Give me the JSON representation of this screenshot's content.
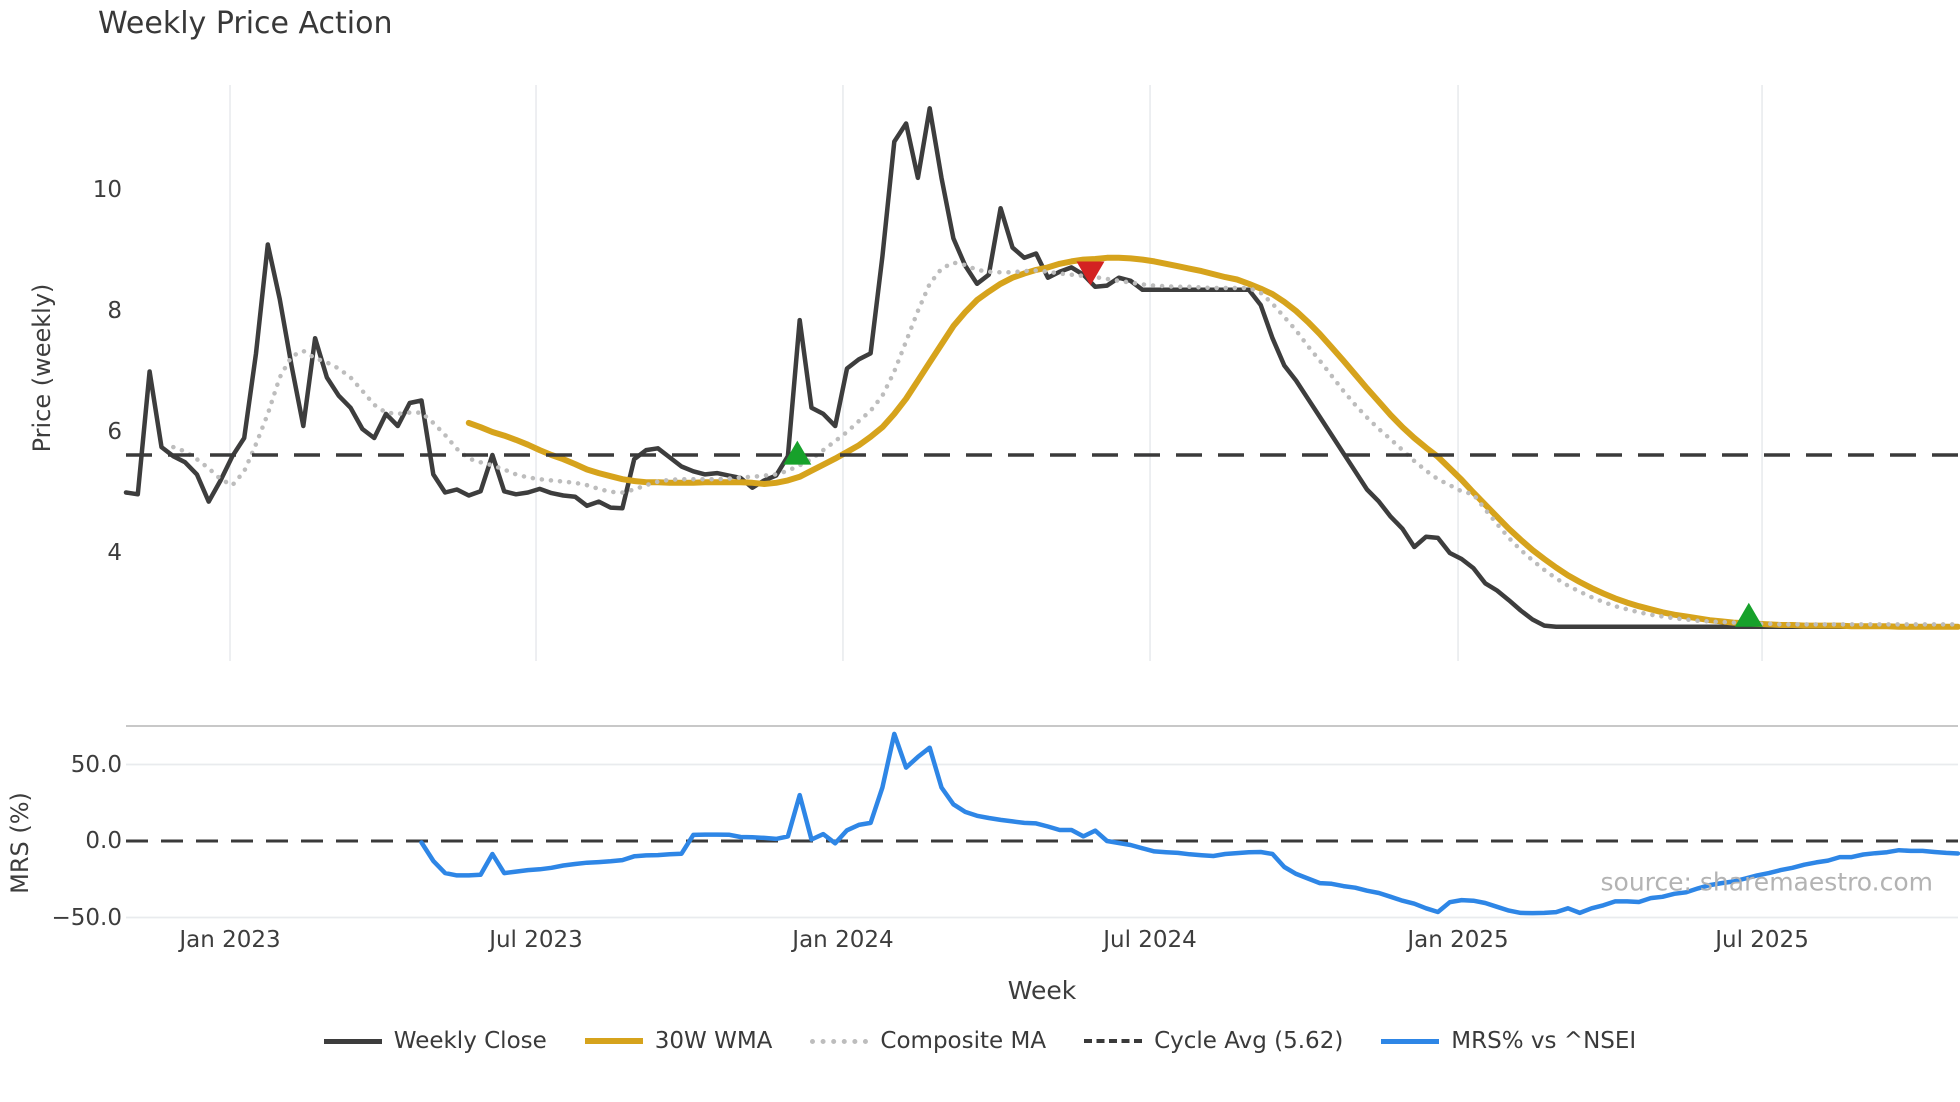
{
  "title": "Weekly Price Action",
  "price_axis_label": "Price (weekly)",
  "mrs_axis_label": "MRS (%)",
  "x_axis_label": "Week",
  "source_text": "source: sharemaestro.com",
  "colors": {
    "background": "#ffffff",
    "text": "#3d3d3d",
    "grid": "#e9ebee",
    "panel_spine": "#c8c8c8",
    "weekly_close": "#3d3d3d",
    "wma_30w": "#d6a31c",
    "composite_ma": "#bdbdbd",
    "cycle_avg": "#3a3a3a",
    "mrs_line": "#2e86e6",
    "buy_marker": "#17a12b",
    "sell_marker": "#d32222",
    "source": "#b3b3b3"
  },
  "chart_data": {
    "type": "line",
    "x_unit": "week_index",
    "weeks_total": 155,
    "x_ticks": [
      {
        "label": "Jan 2023",
        "week": 8.8
      },
      {
        "label": "Jul 2023",
        "week": 34.69
      },
      {
        "label": "Jan 2024",
        "week": 60.66
      },
      {
        "label": "Jul 2024",
        "week": 86.64
      },
      {
        "label": "Jan 2025",
        "week": 112.7
      },
      {
        "label": "Jul 2025",
        "week": 138.42
      }
    ],
    "price_axis": {
      "ticks": [
        {
          "v": 4,
          "label": "4"
        },
        {
          "v": 6,
          "label": "6"
        },
        {
          "v": 8,
          "label": "8"
        },
        {
          "v": 10,
          "label": "10"
        }
      ],
      "range": [
        2.3,
        11.75
      ]
    },
    "mrs_axis": {
      "ticks": [
        {
          "v": -50,
          "label": "−50.0"
        },
        {
          "v": 0,
          "label": "0.0"
        },
        {
          "v": 50,
          "label": "50.0"
        }
      ],
      "range": [
        -55,
        75
      ],
      "zero_line_dashed": true
    },
    "series": [
      {
        "id": "weekly_close",
        "name": "Weekly Close",
        "panel": "price",
        "style": "solid",
        "color": "#3d3d3d",
        "start_week": 0,
        "values": [
          5.0,
          4.97,
          7.0,
          5.75,
          5.6,
          5.5,
          5.3,
          4.85,
          5.2,
          5.6,
          5.9,
          7.3,
          9.1,
          8.2,
          7.1,
          6.1,
          7.55,
          6.9,
          6.6,
          6.4,
          6.05,
          5.9,
          6.3,
          6.1,
          6.48,
          6.52,
          5.3,
          5.0,
          5.05,
          4.95,
          5.02,
          5.62,
          5.02,
          4.97,
          5.0,
          5.06,
          4.99,
          4.95,
          4.93,
          4.78,
          4.85,
          4.75,
          4.74,
          5.55,
          5.7,
          5.73,
          5.58,
          5.43,
          5.35,
          5.3,
          5.32,
          5.28,
          5.24,
          5.08,
          5.2,
          5.28,
          5.6,
          7.85,
          6.4,
          6.3,
          6.1,
          7.05,
          7.2,
          7.3,
          8.9,
          10.8,
          11.1,
          10.2,
          11.35,
          10.2,
          9.2,
          8.75,
          8.45,
          8.6,
          9.7,
          9.05,
          8.88,
          8.95,
          8.55,
          8.65,
          8.72,
          8.6,
          8.4,
          8.42,
          8.55,
          8.5,
          8.35,
          8.35,
          8.35,
          8.35,
          8.35,
          8.35,
          8.35,
          8.35,
          8.35,
          8.35,
          8.1,
          7.55,
          7.1,
          6.85,
          6.55,
          6.25,
          5.95,
          5.65,
          5.35,
          5.05,
          4.85,
          4.6,
          4.4,
          4.1,
          4.27,
          4.25,
          4.0,
          3.9,
          3.75,
          3.5,
          3.38,
          3.22,
          3.05,
          2.9,
          2.8,
          2.78,
          2.78,
          2.78,
          2.78,
          2.78,
          2.78,
          2.78,
          2.78,
          2.78,
          2.78,
          2.78,
          2.78,
          2.78,
          2.78,
          2.78,
          2.78,
          2.78,
          2.78,
          2.78,
          2.78,
          2.78,
          2.78,
          2.78,
          2.78,
          2.78,
          2.78,
          2.78,
          2.78,
          2.78,
          2.78,
          2.78,
          2.78,
          2.78,
          2.78,
          2.78
        ]
      },
      {
        "id": "wma_30w",
        "name": "30W WMA",
        "panel": "price",
        "style": "solid",
        "color": "#d6a31c",
        "start_week": 29,
        "values": [
          6.15,
          6.08,
          6.0,
          5.94,
          5.87,
          5.79,
          5.7,
          5.62,
          5.55,
          5.47,
          5.38,
          5.32,
          5.27,
          5.22,
          5.19,
          5.17,
          5.17,
          5.16,
          5.16,
          5.16,
          5.17,
          5.17,
          5.17,
          5.17,
          5.16,
          5.14,
          5.16,
          5.2,
          5.26,
          5.36,
          5.46,
          5.56,
          5.67,
          5.78,
          5.92,
          6.08,
          6.3,
          6.55,
          6.85,
          7.15,
          7.45,
          7.75,
          7.98,
          8.18,
          8.32,
          8.45,
          8.55,
          8.62,
          8.68,
          8.72,
          8.78,
          8.82,
          8.85,
          8.86,
          8.88,
          8.88,
          8.87,
          8.85,
          8.82,
          8.78,
          8.74,
          8.7,
          8.66,
          8.61,
          8.56,
          8.52,
          8.45,
          8.37,
          8.28,
          8.15,
          8.0,
          7.82,
          7.62,
          7.4,
          7.18,
          6.95,
          6.72,
          6.5,
          6.28,
          6.08,
          5.9,
          5.74,
          5.59,
          5.4,
          5.21,
          5.0,
          4.8,
          4.6,
          4.4,
          4.22,
          4.05,
          3.9,
          3.76,
          3.63,
          3.52,
          3.42,
          3.33,
          3.25,
          3.18,
          3.12,
          3.07,
          3.02,
          2.98,
          2.95,
          2.92,
          2.89,
          2.87,
          2.85,
          2.84,
          2.83,
          2.82,
          2.81,
          2.81,
          2.8,
          2.8,
          2.8,
          2.8,
          2.79,
          2.79,
          2.79,
          2.79,
          2.78,
          2.78,
          2.78,
          2.78,
          2.78,
          2.78
        ]
      },
      {
        "id": "composite_ma",
        "name": "Composite MA",
        "panel": "price",
        "style": "dotted",
        "color": "#bdbdbd",
        "start_week": 4,
        "values": [
          5.75,
          5.68,
          5.55,
          5.4,
          5.22,
          5.12,
          5.35,
          5.8,
          6.3,
          6.9,
          7.25,
          7.34,
          7.22,
          7.15,
          7.05,
          6.9,
          6.68,
          6.45,
          6.32,
          6.3,
          6.32,
          6.32,
          6.15,
          5.95,
          5.72,
          5.56,
          5.5,
          5.45,
          5.38,
          5.3,
          5.25,
          5.22,
          5.2,
          5.18,
          5.16,
          5.12,
          5.06,
          5.01,
          5.0,
          5.05,
          5.12,
          5.18,
          5.21,
          5.22,
          5.22,
          5.22,
          5.22,
          5.23,
          5.25,
          5.26,
          5.28,
          5.3,
          5.36,
          5.45,
          5.55,
          5.7,
          5.85,
          6.0,
          6.18,
          6.35,
          6.6,
          7.0,
          7.5,
          8.0,
          8.45,
          8.7,
          8.8,
          8.76,
          8.68,
          8.65,
          8.64,
          8.64,
          8.66,
          8.67,
          8.65,
          8.62,
          8.6,
          8.58,
          8.56,
          8.53,
          8.5,
          8.47,
          8.44,
          8.42,
          8.41,
          8.4,
          8.4,
          8.39,
          8.38,
          8.38,
          8.38,
          8.38,
          8.3,
          8.12,
          7.9,
          7.68,
          7.42,
          7.18,
          6.93,
          6.68,
          6.45,
          6.24,
          6.05,
          5.88,
          5.7,
          5.52,
          5.36,
          5.22,
          5.12,
          5.02,
          4.97,
          4.72,
          4.48,
          4.25,
          4.05,
          3.88,
          3.72,
          3.58,
          3.46,
          3.36,
          3.27,
          3.19,
          3.12,
          3.07,
          3.02,
          2.98,
          2.95,
          2.92,
          2.9,
          2.88,
          2.87,
          2.86,
          2.85,
          2.84,
          2.83,
          2.83,
          2.82,
          2.82,
          2.82,
          2.82,
          2.82,
          2.82,
          2.82,
          2.82,
          2.82,
          2.82,
          2.82,
          2.82,
          2.82,
          2.82,
          2.82,
          2.82
        ]
      },
      {
        "id": "cycle_avg",
        "name": "Cycle Avg (5.62)",
        "panel": "price",
        "style": "dashed",
        "color": "#3a3a3a",
        "constant": 5.62
      },
      {
        "id": "mrs",
        "name": "MRS% vs ^NSEI",
        "panel": "mrs",
        "style": "solid",
        "color": "#2e86e6",
        "start_week": 25,
        "values": [
          -1.0,
          -13.0,
          -21.0,
          -22.5,
          -22.5,
          -22.0,
          -8.5,
          -21.0,
          -20.0,
          -19.0,
          -18.5,
          -17.5,
          -16.0,
          -15.0,
          -14.2,
          -13.8,
          -13.3,
          -12.5,
          -10.0,
          -9.4,
          -9.2,
          -8.7,
          -8.3,
          4.0,
          4.2,
          4.2,
          4.1,
          2.6,
          2.4,
          2.0,
          1.4,
          3.0,
          30.0,
          1.0,
          4.5,
          -1.5,
          7.0,
          10.5,
          11.8,
          35.0,
          70.0,
          48.0,
          55.0,
          61.0,
          35.0,
          24.0,
          19.0,
          16.5,
          15.0,
          13.8,
          12.8,
          11.8,
          11.5,
          9.5,
          7.2,
          7.2,
          3.0,
          6.8,
          0.0,
          -1.3,
          -2.6,
          -4.8,
          -6.8,
          -7.3,
          -7.8,
          -8.7,
          -9.3,
          -9.8,
          -8.5,
          -7.9,
          -7.3,
          -7.2,
          -8.5,
          -17.0,
          -21.5,
          -24.5,
          -27.5,
          -28.0,
          -29.5,
          -30.5,
          -32.5,
          -34.0,
          -36.5,
          -39.0,
          -41.0,
          -44.0,
          -46.4,
          -40.0,
          -38.6,
          -39.0,
          -40.5,
          -43.0,
          -45.5,
          -47.0,
          -47.1,
          -47.0,
          -46.5,
          -44.0,
          -47.0,
          -44.0,
          -42.0,
          -39.5,
          -39.5,
          -39.9,
          -37.3,
          -36.5,
          -34.5,
          -33.5,
          -31.0,
          -28.8,
          -27.5,
          -26.5,
          -24.5,
          -22.5,
          -21.0,
          -19.0,
          -17.5,
          -15.5,
          -14.0,
          -12.8,
          -10.5,
          -10.5,
          -8.8,
          -8.0,
          -7.3,
          -6.0,
          -6.5,
          -6.5,
          -7.2,
          -7.8,
          -8.2
        ]
      }
    ],
    "markers": [
      {
        "type": "buy",
        "week": 56.8,
        "value": 5.66,
        "color": "#17a12b"
      },
      {
        "type": "sell",
        "week": 81.6,
        "value": 8.62,
        "color": "#d32222"
      },
      {
        "type": "buy",
        "week": 137.3,
        "value": 2.98,
        "color": "#17a12b"
      }
    ],
    "legend_order": [
      "weekly_close",
      "wma_30w",
      "composite_ma",
      "cycle_avg",
      "mrs"
    ]
  }
}
